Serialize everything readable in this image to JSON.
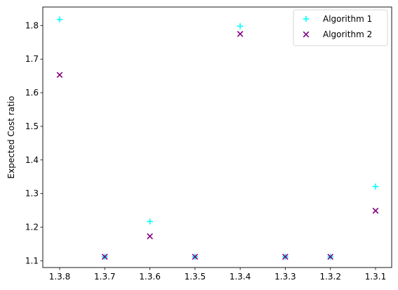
{
  "chart_data": {
    "type": "scatter",
    "title": "",
    "xlabel": "",
    "ylabel": "Expected Cost ratio",
    "categories": [
      "1.3.8",
      "1.3.7",
      "1.3.6",
      "1.3.5",
      "1.3.4",
      "1.3.3",
      "1.3.2",
      "1.3.1"
    ],
    "yticks": [
      "1.1",
      "1.2",
      "1.3",
      "1.4",
      "1.5",
      "1.6",
      "1.7",
      "1.8"
    ],
    "ylim": [
      1.08,
      1.855
    ],
    "grid": false,
    "legend_position": "top-right",
    "series": [
      {
        "name": "Algorithm 1",
        "marker": "plus",
        "color": "#00ffff",
        "values": [
          1.818,
          1.112,
          1.217,
          1.112,
          1.798,
          1.112,
          1.112,
          1.321
        ]
      },
      {
        "name": "Algorithm 2",
        "marker": "x",
        "color": "#800080",
        "values": [
          1.653,
          1.112,
          1.173,
          1.112,
          1.775,
          1.112,
          1.112,
          1.249
        ]
      }
    ]
  }
}
